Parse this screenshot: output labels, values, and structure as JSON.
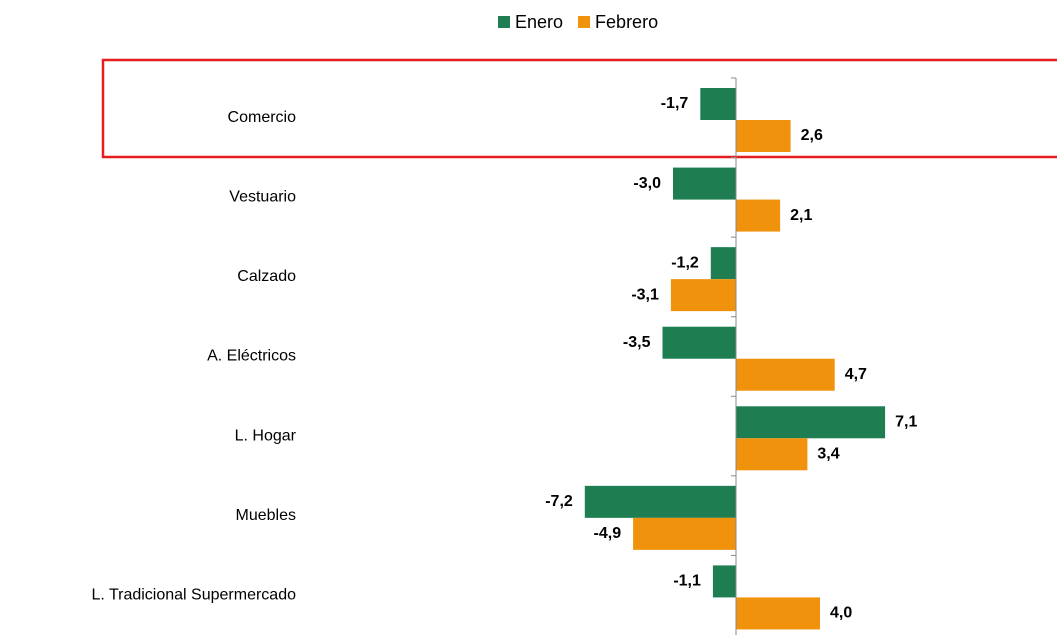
{
  "chart_data": {
    "type": "hbar",
    "categories": [
      "Comercio",
      "Vestuario",
      "Calzado",
      "A. Eléctricos",
      "L. Hogar",
      "Muebles",
      "L. Tradicional Supermercado"
    ],
    "series": [
      {
        "name": "Enero",
        "color": "#1f7d52",
        "values": [
          -1.7,
          -3.0,
          -1.2,
          -3.5,
          7.1,
          -7.2,
          -1.1
        ],
        "value_labels": [
          "-1,7",
          "-3,0",
          "-1,2",
          "-3,5",
          "7,1",
          "-7,2",
          "-1,1"
        ]
      },
      {
        "name": "Febrero",
        "color": "#f0920c",
        "values": [
          2.6,
          2.1,
          -3.1,
          4.7,
          3.4,
          -4.9,
          4.0
        ],
        "value_labels": [
          "2,6",
          "2,1",
          "-3,1",
          "4,7",
          "3,4",
          "-4,9",
          "4,0"
        ]
      }
    ],
    "xlim": [
      -15,
      15
    ],
    "legend": "top"
  }
}
